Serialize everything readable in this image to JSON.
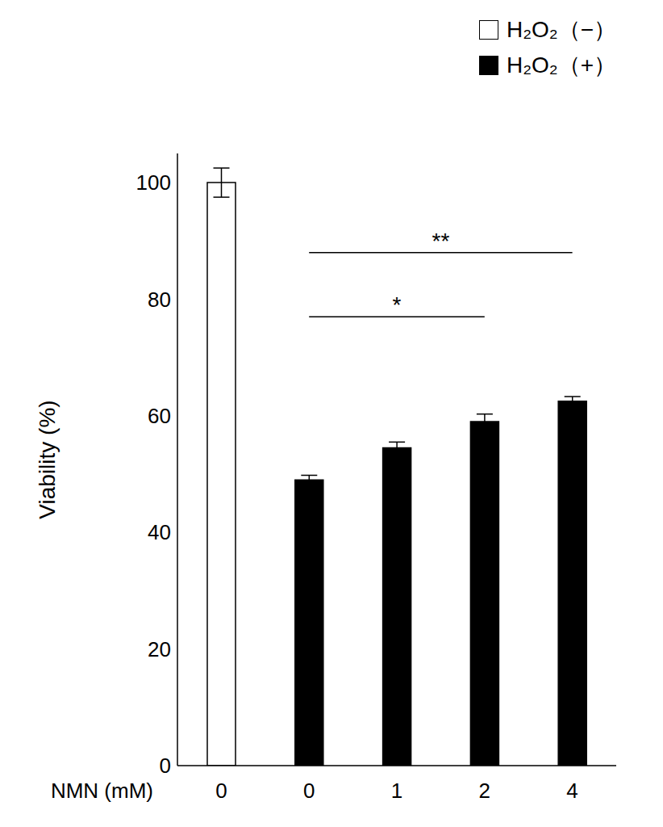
{
  "chart_data": {
    "type": "bar",
    "x_label": "NMN (mM)",
    "y_label": "Viability (%)",
    "categories": [
      "0",
      "0",
      "1",
      "2",
      "4"
    ],
    "series": [
      {
        "name": "H₂O₂（−）",
        "color": "#ffffff",
        "values": [
          100,
          null,
          null,
          null,
          null
        ],
        "errors": [
          2.5,
          null,
          null,
          null,
          null
        ]
      },
      {
        "name": "H₂O₂（+）",
        "color": "#000000",
        "values": [
          null,
          49,
          54.5,
          59,
          62.5
        ],
        "errors": [
          null,
          0.8,
          1,
          1.3,
          0.8
        ]
      }
    ],
    "stacked": true,
    "ylim": [
      0,
      105
    ],
    "yticks": [
      0,
      20,
      40,
      60,
      80,
      100
    ],
    "grid": false,
    "legend": "top-right",
    "annotations": [
      {
        "text": "**",
        "from": 1,
        "to": 4,
        "y": 88
      },
      {
        "text": "*",
        "from": 1,
        "to": 3,
        "y": 77
      }
    ]
  }
}
